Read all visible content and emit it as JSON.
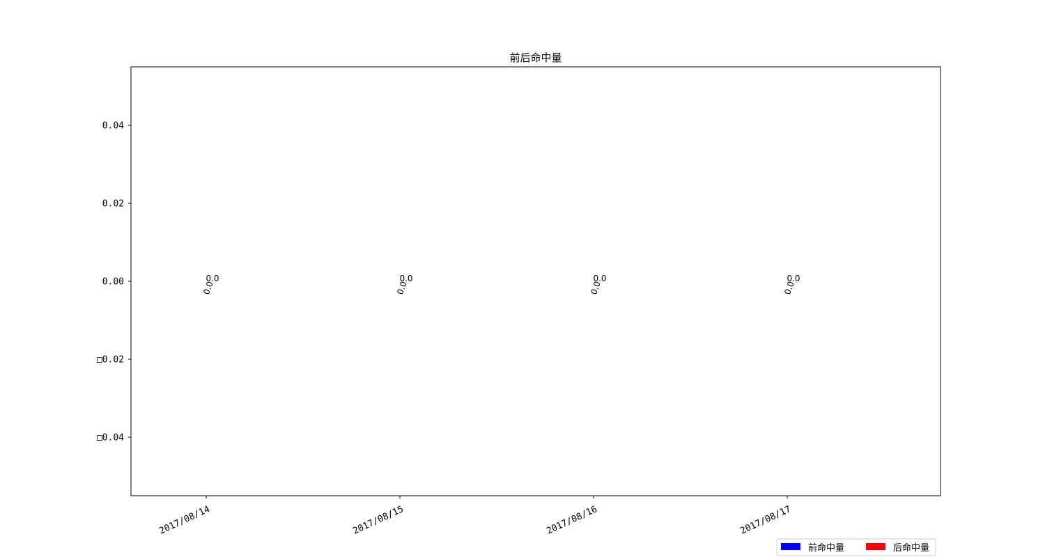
{
  "chart_data": {
    "type": "bar",
    "title": "前后命中量",
    "xlabel": "",
    "ylabel": "",
    "categories": [
      "2017/08/14",
      "2017/08/15",
      "2017/08/16",
      "2017/08/17"
    ],
    "series": [
      {
        "name": "前命中量",
        "color": "#0000ff",
        "values": [
          0.0,
          0.0,
          0.0,
          0.0
        ]
      },
      {
        "name": "后命中量",
        "color": "#ff0000",
        "values": [
          0.0,
          0.0,
          0.0,
          0.0
        ]
      }
    ],
    "ylim": [
      -0.055,
      0.055
    ],
    "yticks": [
      0.04,
      0.02,
      0.0,
      -0.02,
      -0.04
    ],
    "ytick_labels": [
      "0.04",
      "0.02",
      "0.00",
      "□0.02",
      "□0.04"
    ],
    "data_labels": [
      "0.0",
      "0.0"
    ],
    "legend": {
      "position": "bottom-right",
      "columns": 2
    },
    "grid": false,
    "xtick_rotation": "rotated"
  }
}
